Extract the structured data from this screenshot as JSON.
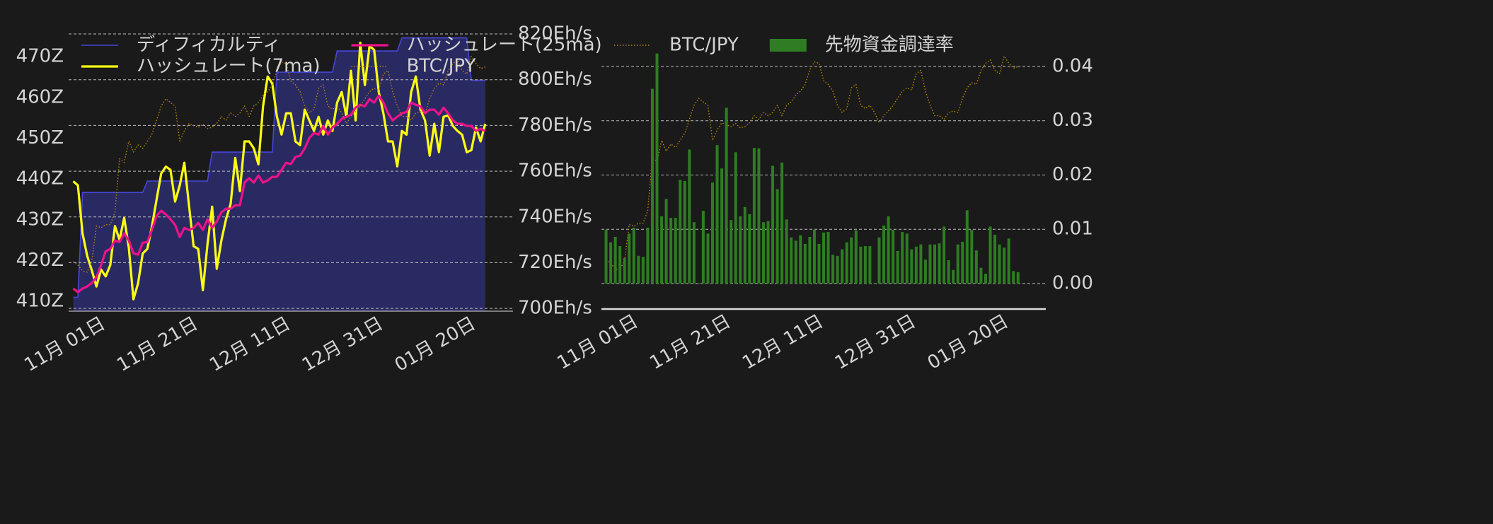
{
  "chart_data": [
    {
      "type": "line",
      "x": [
        "10-26",
        "10-27",
        "10-28",
        "10-29",
        "10-30",
        "10-31",
        "11-01",
        "11-02",
        "11-03",
        "11-04",
        "11-05",
        "11-06",
        "11-07",
        "11-08",
        "11-09",
        "11-10",
        "11-11",
        "11-12",
        "11-13",
        "11-14",
        "11-15",
        "11-16",
        "11-17",
        "11-18",
        "11-19",
        "11-20",
        "11-21",
        "11-22",
        "11-23",
        "11-24",
        "11-25",
        "11-26",
        "11-27",
        "11-28",
        "11-29",
        "11-30",
        "12-01",
        "12-02",
        "12-03",
        "12-04",
        "12-05",
        "12-06",
        "12-07",
        "12-08",
        "12-09",
        "12-10",
        "12-11",
        "12-12",
        "12-13",
        "12-14",
        "12-15",
        "12-16",
        "12-17",
        "12-18",
        "12-19",
        "12-20",
        "12-21",
        "12-22",
        "12-23",
        "12-24",
        "12-25",
        "12-26",
        "12-27",
        "12-28",
        "12-29",
        "12-30",
        "12-31",
        "01-01",
        "01-02",
        "01-03",
        "01-04",
        "01-05",
        "01-06",
        "01-07",
        "01-08",
        "01-09",
        "01-10",
        "01-11",
        "01-12",
        "01-13",
        "01-14",
        "01-15",
        "01-16",
        "01-17",
        "01-18",
        "01-19",
        "01-20",
        "01-21",
        "01-22",
        "01-23"
      ],
      "xlim": [
        "10-25",
        "01-29"
      ],
      "xticks": [
        {
          "value": "11-01",
          "label": "11月 01日"
        },
        {
          "value": "11-21",
          "label": "11月 21日"
        },
        {
          "value": "12-11",
          "label": "12月 11日"
        },
        {
          "value": "12-31",
          "label": "12月 31日"
        },
        {
          "value": "01-20",
          "label": "01月 20日"
        }
      ],
      "ylim": [
        407.6,
        477.3
      ],
      "yticks": [
        {
          "value": 410,
          "label": "410Z"
        },
        {
          "value": 420,
          "label": "420Z"
        },
        {
          "value": 430,
          "label": "430Z"
        },
        {
          "value": 440,
          "label": "440Z"
        },
        {
          "value": 450,
          "label": "450Z"
        },
        {
          "value": 460,
          "label": "460Z"
        },
        {
          "value": 470,
          "label": "470Z"
        }
      ],
      "y2lim": [
        698.8,
        823.1
      ],
      "y2ticks": [
        {
          "value": 700,
          "label": "700Eh/s"
        },
        {
          "value": 720,
          "label": "720Eh/s"
        },
        {
          "value": 740,
          "label": "740Eh/s"
        },
        {
          "value": 760,
          "label": "760Eh/s"
        },
        {
          "value": 780,
          "label": "780Eh/s"
        },
        {
          "value": 800,
          "label": "800Eh/s"
        },
        {
          "value": 820,
          "label": "820Eh/s"
        }
      ],
      "y3lim": [
        9150000,
        17530000
      ],
      "grid": true,
      "legend": "upper left",
      "series": [
        {
          "name": "ディフィカルティ",
          "color": "#4646d8",
          "fill": "#2a2a63",
          "values": [
            411.0,
            411.0,
            436.7,
            436.7,
            436.7,
            436.7,
            436.7,
            436.7,
            436.7,
            436.7,
            436.7,
            436.7,
            436.7,
            436.7,
            436.7,
            436.7,
            439.5,
            439.5,
            439.5,
            439.5,
            439.5,
            439.5,
            439.5,
            439.5,
            439.5,
            439.5,
            439.5,
            439.5,
            439.5,
            439.5,
            446.6,
            446.6,
            446.6,
            446.6,
            446.6,
            446.6,
            446.6,
            446.6,
            446.6,
            446.6,
            446.6,
            446.6,
            446.6,
            446.6,
            466.2,
            466.2,
            466.2,
            466.2,
            466.2,
            466.2,
            466.2,
            466.2,
            466.2,
            466.2,
            466.2,
            466.2,
            466.2,
            471.4,
            471.4,
            471.4,
            471.4,
            471.4,
            471.4,
            471.4,
            471.4,
            471.4,
            471.4,
            471.4,
            471.4,
            471.4,
            471.4,
            474.6,
            474.6,
            474.6,
            474.6,
            474.6,
            474.6,
            474.6,
            474.6,
            474.6,
            474.6,
            474.6,
            474.6,
            474.6,
            474.6,
            474.6,
            464.2,
            464.2,
            464.2,
            464.2
          ]
        },
        {
          "name": "ハッシュレート(7ma)",
          "color": "#ffff14",
          "axis": "y2",
          "values": [
            755.6,
            753.8,
            732.8,
            723.0,
            716.7,
            709.6,
            717.0,
            714.0,
            719.0,
            736.0,
            730.0,
            739.6,
            726.6,
            704.0,
            711.0,
            724.0,
            726.0,
            735.9,
            747.6,
            759.0,
            762.0,
            760.6,
            746.7,
            753.8,
            763.7,
            745.1,
            727.2,
            726.0,
            708.0,
            728.1,
            744.5,
            717.3,
            729.7,
            739.0,
            745.7,
            765.8,
            751.3,
            773.0,
            773.0,
            770.0,
            763.0,
            788.4,
            801.4,
            798.3,
            783.8,
            776.0,
            785.3,
            785.3,
            773.0,
            771.4,
            786.9,
            782.2,
            777.6,
            783.8,
            776.0,
            782.2,
            777.6,
            790.0,
            794.6,
            783.8,
            803.9,
            782.2,
            816.2,
            797.7,
            814.7,
            813.1,
            794.6,
            785.3,
            773.0,
            773.0,
            762.1,
            777.6,
            776.0,
            794.6,
            801.4,
            786.9,
            782.2,
            766.8,
            780.7,
            768.3,
            783.8,
            784.4,
            779.8,
            777.6,
            776.0,
            768.3,
            769.2,
            779.1,
            773.0,
            780.7
          ]
        },
        {
          "name": "ハッシュレート(25ma)",
          "color": "#ee1289",
          "axis": "y2",
          "values": [
            708.7,
            707.1,
            708.7,
            709.6,
            711.1,
            713.6,
            718.9,
            725.0,
            726.0,
            729.7,
            729.0,
            732.8,
            729.7,
            724.1,
            723.5,
            728.7,
            729.0,
            734.3,
            740.5,
            742.7,
            741.1,
            739.0,
            736.5,
            731.2,
            735.2,
            734.3,
            735.2,
            737.4,
            734.3,
            739.0,
            735.2,
            738.0,
            742.0,
            743.6,
            743.6,
            745.1,
            745.1,
            755.0,
            756.9,
            755.0,
            758.1,
            755.0,
            756.0,
            757.5,
            757.5,
            760.6,
            763.7,
            763.1,
            766.2,
            766.8,
            769.9,
            774.5,
            776.7,
            776.0,
            779.8,
            776.0,
            779.1,
            780.7,
            782.8,
            783.8,
            784.7,
            787.8,
            789.0,
            788.4,
            791.5,
            790.0,
            793.0,
            790.0,
            785.3,
            782.2,
            783.8,
            785.3,
            785.9,
            790.0,
            789.0,
            788.4,
            785.3,
            786.9,
            786.9,
            784.7,
            787.8,
            785.3,
            782.2,
            780.7,
            780.7,
            779.8,
            779.8,
            777.6,
            778.5,
            777.6
          ]
        },
        {
          "name": "BTC/JPY",
          "color": "#b8860b",
          "axis": "y3",
          "style": "dotted",
          "values": [
            10610000,
            10510000,
            10340000,
            10300000,
            10610000,
            11660000,
            11610000,
            11700000,
            11700000,
            12070000,
            13640000,
            13530000,
            14160000,
            13840000,
            14050000,
            13950000,
            14160000,
            14370000,
            14780000,
            15200000,
            15410000,
            15300000,
            15200000,
            14160000,
            14470000,
            14680000,
            14620000,
            14570000,
            14660000,
            14530000,
            14570000,
            14680000,
            14890000,
            14780000,
            14990000,
            14890000,
            14990000,
            15200000,
            14890000,
            15200000,
            15300000,
            15510000,
            15620000,
            15820000,
            16240000,
            16490000,
            16450000,
            15930000,
            15820000,
            15620000,
            15200000,
            14990000,
            15100000,
            15720000,
            15820000,
            15200000,
            15100000,
            15200000,
            14990000,
            14680000,
            14890000,
            15030000,
            15200000,
            15410000,
            15620000,
            15720000,
            15660000,
            16140000,
            16240000,
            15620000,
            15200000,
            14890000,
            14890000,
            14780000,
            14990000,
            15030000,
            14990000,
            15410000,
            15720000,
            15870000,
            15820000,
            16240000,
            16450000,
            16550000,
            16240000,
            16140000,
            16660000,
            16450000,
            16300000,
            16350000
          ]
        }
      ]
    },
    {
      "type": "bar",
      "x": [
        "10-26",
        "10-27",
        "10-28",
        "10-29",
        "10-30",
        "10-31",
        "11-01",
        "11-02",
        "11-03",
        "11-04",
        "11-05",
        "11-06",
        "11-07",
        "11-08",
        "11-09",
        "11-10",
        "11-11",
        "11-12",
        "11-13",
        "11-14",
        "11-15",
        "11-16",
        "11-17",
        "11-18",
        "11-19",
        "11-20",
        "11-21",
        "11-22",
        "11-23",
        "11-24",
        "11-25",
        "11-26",
        "11-27",
        "11-28",
        "11-29",
        "11-30",
        "12-01",
        "12-02",
        "12-03",
        "12-04",
        "12-05",
        "12-06",
        "12-07",
        "12-08",
        "12-09",
        "12-10",
        "12-11",
        "12-12",
        "12-13",
        "12-14",
        "12-15",
        "12-16",
        "12-17",
        "12-18",
        "12-19",
        "12-20",
        "12-21",
        "12-22",
        "12-23",
        "12-24",
        "12-25",
        "12-26",
        "12-27",
        "12-28",
        "12-29",
        "12-30",
        "12-31",
        "01-01",
        "01-02",
        "01-03",
        "01-04",
        "01-05",
        "01-06",
        "01-07",
        "01-08",
        "01-09",
        "01-10",
        "01-11",
        "01-12",
        "01-13",
        "01-14",
        "01-15",
        "01-16",
        "01-17",
        "01-18",
        "01-19",
        "01-20",
        "01-21",
        "01-22",
        "01-23"
      ],
      "xlim": [
        "10-25",
        "01-29"
      ],
      "xticks": [
        {
          "value": "11-01",
          "label": "11月 01日"
        },
        {
          "value": "11-21",
          "label": "11月 21日"
        },
        {
          "value": "12-11",
          "label": "12月 11日"
        },
        {
          "value": "12-31",
          "label": "12月 31日"
        },
        {
          "value": "01-20",
          "label": "01月 20日"
        }
      ],
      "ylim": [
        -0.0047,
        0.0473
      ],
      "yticks": [
        {
          "value": 0,
          "label": "0.00"
        },
        {
          "value": 0.01,
          "label": "0.01"
        },
        {
          "value": 0.02,
          "label": "0.02"
        },
        {
          "value": 0.03,
          "label": "0.03"
        },
        {
          "value": 0.04,
          "label": "0.04"
        }
      ],
      "yaxis_position": "right",
      "y3lim": [
        9150000,
        17530000
      ],
      "grid": true,
      "legend": "upper left",
      "series": [
        {
          "name": "BTC/JPY",
          "type": "line",
          "color": "#b8860b",
          "axis": "y3",
          "style": "dotted",
          "values": [
            10610000,
            10510000,
            10340000,
            10300000,
            10610000,
            11660000,
            11610000,
            11700000,
            11700000,
            12070000,
            13640000,
            13530000,
            14160000,
            13840000,
            14050000,
            13950000,
            14160000,
            14370000,
            14780000,
            15200000,
            15410000,
            15300000,
            15200000,
            14160000,
            14470000,
            14680000,
            14620000,
            14570000,
            14660000,
            14530000,
            14570000,
            14680000,
            14890000,
            14780000,
            14990000,
            14890000,
            14990000,
            15200000,
            14890000,
            15200000,
            15300000,
            15510000,
            15620000,
            15820000,
            16240000,
            16490000,
            16450000,
            15930000,
            15820000,
            15620000,
            15200000,
            14990000,
            15100000,
            15720000,
            15820000,
            15200000,
            15100000,
            15200000,
            14990000,
            14680000,
            14890000,
            15030000,
            15200000,
            15410000,
            15620000,
            15720000,
            15660000,
            16140000,
            16240000,
            15620000,
            15200000,
            14890000,
            14890000,
            14780000,
            14990000,
            15030000,
            14990000,
            15410000,
            15720000,
            15870000,
            15820000,
            16240000,
            16450000,
            16550000,
            16240000,
            16140000,
            16660000,
            16450000,
            16300000,
            16350000
          ]
        },
        {
          "name": "先物資金調達率",
          "color": "#2e7d22",
          "values": [
            0.0099,
            0.0076,
            0.0086,
            0.0069,
            0.0047,
            0.0092,
            0.0103,
            0.0051,
            0.0049,
            0.0103,
            0.0359,
            0.0424,
            0.0124,
            0.0156,
            0.0121,
            0.0121,
            0.0191,
            0.0189,
            0.0247,
            0.0113,
            0.0001,
            0.0134,
            0.0092,
            0.0186,
            0.0255,
            0.0212,
            0.0324,
            0.0117,
            0.0242,
            0.0124,
            0.0141,
            0.0128,
            0.025,
            0.0249,
            0.0113,
            0.0115,
            0.0217,
            0.0174,
            0.0223,
            0.0118,
            0.0085,
            0.0079,
            0.0089,
            0.0073,
            0.0086,
            0.0099,
            0.0073,
            0.0094,
            0.0095,
            0.0053,
            0.0051,
            0.0063,
            0.0076,
            0.0085,
            0.0098,
            0.0068,
            0.0069,
            0.0069,
            0.0001,
            0.0085,
            0.0107,
            0.0124,
            0.0099,
            0.006,
            0.0095,
            0.0092,
            0.0063,
            0.0068,
            0.0072,
            0.0044,
            0.0072,
            0.0072,
            0.0074,
            0.0105,
            0.0043,
            0.0025,
            0.0072,
            0.0077,
            0.0135,
            0.0099,
            0.0061,
            0.0029,
            0.0018,
            0.0105,
            0.009,
            0.0072,
            0.0066,
            0.0083,
            0.0023,
            0.0021
          ]
        }
      ]
    }
  ]
}
